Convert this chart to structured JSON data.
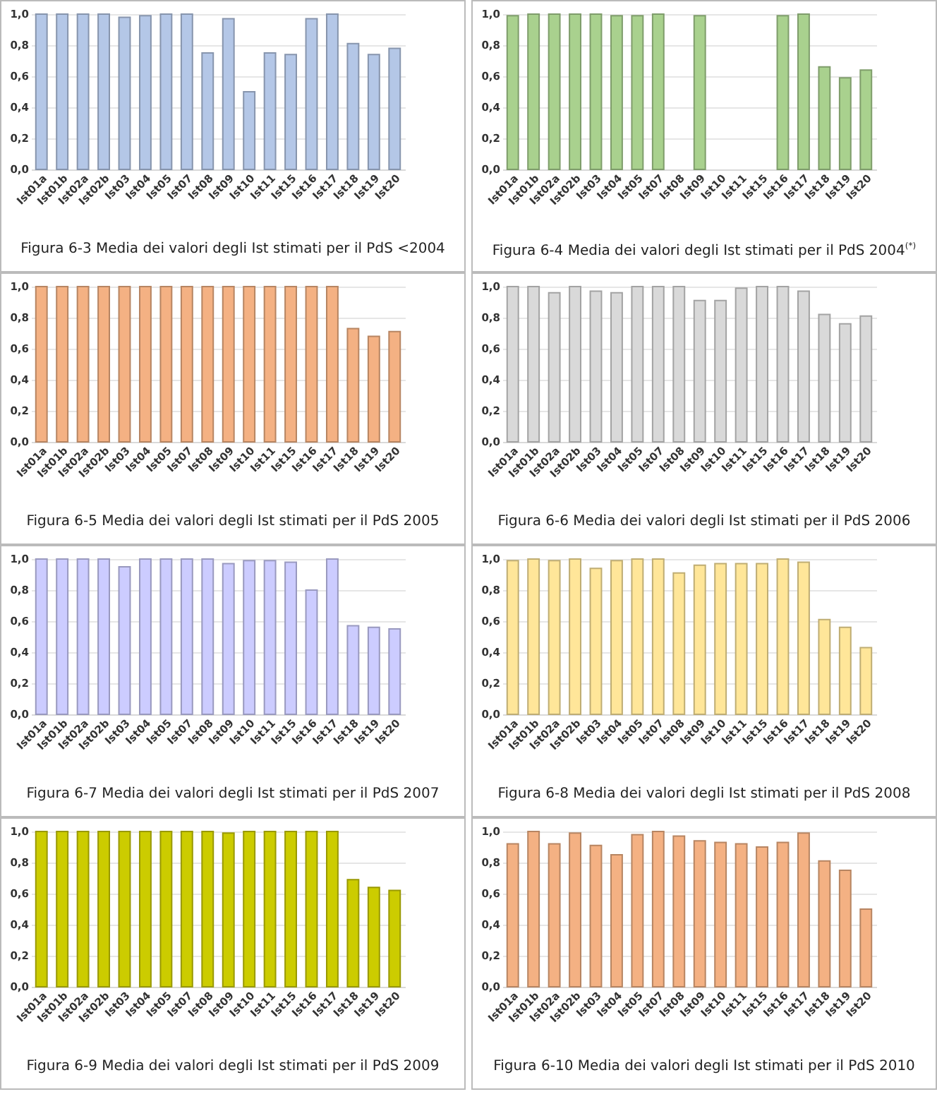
{
  "chart_data": [
    {
      "type": "bar",
      "title": "Figura 6-3 Media dei valori degli Ist stimati per il PdS <2004",
      "categories": [
        "Ist01a",
        "Ist01b",
        "Ist02a",
        "Ist02b",
        "Ist03",
        "Ist04",
        "Ist05",
        "Ist07",
        "Ist08",
        "Ist09",
        "Ist10",
        "Ist11",
        "Ist15",
        "Ist16",
        "Ist17",
        "Ist18",
        "Ist19",
        "Ist20"
      ],
      "color": "#b4c7e7",
      "values": [
        1.0,
        1.0,
        1.0,
        1.0,
        0.98,
        0.99,
        1.0,
        1.0,
        0.75,
        0.97,
        0.5,
        0.75,
        0.74,
        0.97,
        1.0,
        0.81,
        0.74,
        0.78
      ],
      "ylim": [
        0,
        1
      ],
      "yticks": [
        {
          "value": 0,
          "label": "0,0"
        },
        {
          "value": 0.2,
          "label": "0,2"
        },
        {
          "value": 0.4,
          "label": "0,4"
        },
        {
          "value": 0.6,
          "label": "0,6"
        },
        {
          "value": 0.8,
          "label": "0,8"
        },
        {
          "value": 1,
          "label": "1,0"
        }
      ],
      "grid": "y"
    },
    {
      "type": "bar",
      "title": "Figura 6-4 Media dei valori degli Ist stimati per il PdS 2004$^{(*)}$",
      "categories": [
        "Ist01a",
        "Ist01b",
        "Ist02a",
        "Ist02b",
        "Ist03",
        "Ist04",
        "Ist05",
        "Ist07",
        "Ist08",
        "Ist09",
        "Ist10",
        "Ist11",
        "Ist15",
        "Ist16",
        "Ist17",
        "Ist18",
        "Ist19",
        "Ist20"
      ],
      "color": "#a9d18e",
      "values": [
        0.99,
        1.0,
        1.0,
        1.0,
        1.0,
        0.99,
        0.99,
        1.0,
        null,
        0.99,
        null,
        null,
        null,
        0.99,
        1.0,
        0.66,
        0.59,
        0.64
      ],
      "ylim": [
        0,
        1
      ],
      "yticks": [
        {
          "value": 0,
          "label": "0,0"
        },
        {
          "value": 0.2,
          "label": "0,2"
        },
        {
          "value": 0.4,
          "label": "0,4"
        },
        {
          "value": 0.6,
          "label": "0,6"
        },
        {
          "value": 0.8,
          "label": "0,8"
        },
        {
          "value": 1,
          "label": "1,0"
        }
      ],
      "grid": "y"
    },
    {
      "type": "bar",
      "title": "Figura 6-5 Media dei valori degli Ist stimati per il PdS 2005",
      "categories": [
        "Ist01a",
        "Ist01b",
        "Ist02a",
        "Ist02b",
        "Ist03",
        "Ist04",
        "Ist05",
        "Ist07",
        "Ist08",
        "Ist09",
        "Ist10",
        "Ist11",
        "Ist15",
        "Ist16",
        "Ist17",
        "Ist18",
        "Ist19",
        "Ist20"
      ],
      "color": "#f4b183",
      "values": [
        1.0,
        1.0,
        1.0,
        1.0,
        1.0,
        1.0,
        1.0,
        1.0,
        1.0,
        1.0,
        1.0,
        1.0,
        1.0,
        1.0,
        1.0,
        0.73,
        0.68,
        0.71
      ],
      "ylim": [
        0,
        1
      ],
      "yticks": [
        {
          "value": 0,
          "label": "0,0"
        },
        {
          "value": 0.2,
          "label": "0,2"
        },
        {
          "value": 0.4,
          "label": "0,4"
        },
        {
          "value": 0.6,
          "label": "0,6"
        },
        {
          "value": 0.8,
          "label": "0,8"
        },
        {
          "value": 1,
          "label": "1,0"
        }
      ],
      "grid": "y"
    },
    {
      "type": "bar",
      "title": "Figura 6-6 Media dei valori degli Ist stimati per il PdS 2006",
      "categories": [
        "Ist01a",
        "Ist01b",
        "Ist02a",
        "Ist02b",
        "Ist03",
        "Ist04",
        "Ist05",
        "Ist07",
        "Ist08",
        "Ist09",
        "Ist10",
        "Ist11",
        "Ist15",
        "Ist16",
        "Ist17",
        "Ist18",
        "Ist19",
        "Ist20"
      ],
      "color": "#d9d9d9",
      "values": [
        1.0,
        1.0,
        0.96,
        1.0,
        0.97,
        0.96,
        1.0,
        1.0,
        1.0,
        0.91,
        0.91,
        0.99,
        1.0,
        1.0,
        0.97,
        0.82,
        0.76,
        0.81
      ],
      "ylim": [
        0,
        1
      ],
      "yticks": [
        {
          "value": 0,
          "label": "0,0"
        },
        {
          "value": 0.2,
          "label": "0,2"
        },
        {
          "value": 0.4,
          "label": "0,4"
        },
        {
          "value": 0.6,
          "label": "0,6"
        },
        {
          "value": 0.8,
          "label": "0,8"
        },
        {
          "value": 1,
          "label": "1,0"
        }
      ],
      "grid": "y"
    },
    {
      "type": "bar",
      "title": "Figura 6-7 Media dei valori degli Ist stimati per il PdS 2007",
      "categories": [
        "Ist01a",
        "Ist01b",
        "Ist02a",
        "Ist02b",
        "Ist03",
        "Ist04",
        "Ist05",
        "Ist07",
        "Ist08",
        "Ist09",
        "Ist10",
        "Ist11",
        "Ist15",
        "Ist16",
        "Ist17",
        "Ist18",
        "Ist19",
        "Ist20"
      ],
      "color": "#ccccff",
      "values": [
        1.0,
        1.0,
        1.0,
        1.0,
        0.95,
        1.0,
        1.0,
        1.0,
        1.0,
        0.97,
        0.99,
        0.99,
        0.98,
        0.8,
        1.0,
        0.57,
        0.56,
        0.55
      ],
      "ylim": [
        0,
        1
      ],
      "yticks": [
        {
          "value": 0,
          "label": "0,0"
        },
        {
          "value": 0.2,
          "label": "0,2"
        },
        {
          "value": 0.4,
          "label": "0,4"
        },
        {
          "value": 0.6,
          "label": "0,6"
        },
        {
          "value": 0.8,
          "label": "0,8"
        },
        {
          "value": 1,
          "label": "1,0"
        }
      ],
      "grid": "y"
    },
    {
      "type": "bar",
      "title": "Figura 6-8 Media dei valori degli Ist stimati per il PdS 2008",
      "categories": [
        "Ist01a",
        "Ist01b",
        "Ist02a",
        "Ist02b",
        "Ist03",
        "Ist04",
        "Ist05",
        "Ist07",
        "Ist08",
        "Ist09",
        "Ist10",
        "Ist11",
        "Ist15",
        "Ist16",
        "Ist17",
        "Ist18",
        "Ist19",
        "Ist20"
      ],
      "color": "#ffe699",
      "values": [
        0.99,
        1.0,
        0.99,
        1.0,
        0.94,
        0.99,
        1.0,
        1.0,
        0.91,
        0.96,
        0.97,
        0.97,
        0.97,
        1.0,
        0.98,
        0.61,
        0.56,
        0.43
      ],
      "ylim": [
        0,
        1
      ],
      "yticks": [
        {
          "value": 0,
          "label": "0,0"
        },
        {
          "value": 0.2,
          "label": "0,2"
        },
        {
          "value": 0.4,
          "label": "0,4"
        },
        {
          "value": 0.6,
          "label": "0,6"
        },
        {
          "value": 0.8,
          "label": "0,8"
        },
        {
          "value": 1,
          "label": "1,0"
        }
      ],
      "grid": "y"
    },
    {
      "type": "bar",
      "title": "Figura 6-9 Media dei valori degli Ist stimati per il PdS 2009",
      "categories": [
        "Ist01a",
        "Ist01b",
        "Ist02a",
        "Ist02b",
        "Ist03",
        "Ist04",
        "Ist05",
        "Ist07",
        "Ist08",
        "Ist09",
        "Ist10",
        "Ist11",
        "Ist15",
        "Ist16",
        "Ist17",
        "Ist18",
        "Ist19",
        "Ist20"
      ],
      "color": "#cccc00",
      "values": [
        1.0,
        1.0,
        1.0,
        1.0,
        1.0,
        1.0,
        1.0,
        1.0,
        1.0,
        0.99,
        1.0,
        1.0,
        1.0,
        1.0,
        1.0,
        0.69,
        0.64,
        0.62
      ],
      "ylim": [
        0,
        1
      ],
      "yticks": [
        {
          "value": 0,
          "label": "0,0"
        },
        {
          "value": 0.2,
          "label": "0,2"
        },
        {
          "value": 0.4,
          "label": "0,4"
        },
        {
          "value": 0.6,
          "label": "0,6"
        },
        {
          "value": 0.8,
          "label": "0,8"
        },
        {
          "value": 1,
          "label": "1,0"
        }
      ],
      "grid": "y"
    },
    {
      "type": "bar",
      "title": "Figura 6-10 Media dei valori degli Ist stimati per il PdS 2010",
      "categories": [
        "Ist01a",
        "Ist01b",
        "Ist02a",
        "Ist02b",
        "Ist03",
        "Ist04",
        "Ist05",
        "Ist07",
        "Ist08",
        "Ist09",
        "Ist10",
        "Ist11",
        "Ist15",
        "Ist16",
        "Ist17",
        "Ist18",
        "Ist19",
        "Ist20"
      ],
      "color": "#f4b183",
      "values": [
        0.92,
        1.0,
        0.92,
        0.99,
        0.91,
        0.85,
        0.98,
        1.0,
        0.97,
        0.94,
        0.93,
        0.92,
        0.9,
        0.93,
        0.99,
        0.81,
        0.75,
        0.5
      ],
      "ylim": [
        0,
        1
      ],
      "yticks": [
        {
          "value": 0,
          "label": "0,0"
        },
        {
          "value": 0.2,
          "label": "0,2"
        },
        {
          "value": 0.4,
          "label": "0,4"
        },
        {
          "value": 0.6,
          "label": "0,6"
        },
        {
          "value": 0.8,
          "label": "0,8"
        },
        {
          "value": 1,
          "label": "1,0"
        }
      ],
      "grid": "y"
    }
  ]
}
